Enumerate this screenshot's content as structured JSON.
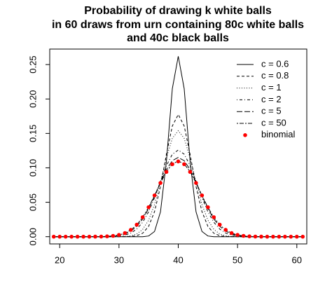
{
  "chart_data": {
    "type": "line",
    "title": [
      "Probability of drawing k white balls",
      "in 60 draws from urn containing 80c white balls",
      "and 40c black balls"
    ],
    "x": [
      19,
      20,
      21,
      22,
      23,
      24,
      25,
      26,
      27,
      28,
      29,
      30,
      31,
      32,
      33,
      34,
      35,
      36,
      37,
      38,
      39,
      40,
      41,
      42,
      43,
      44,
      45,
      46,
      47,
      48,
      49,
      50,
      51,
      52,
      53,
      54,
      55,
      56,
      57,
      58,
      59,
      60,
      61
    ],
    "xlim": [
      18.32,
      61.68
    ],
    "xticks": [
      20,
      30,
      40,
      50,
      60
    ],
    "ylim": [
      -0.0105,
      0.2725
    ],
    "yticks": [
      {
        "value": 0,
        "label": "0.00"
      },
      {
        "value": 0.05,
        "label": "0.05"
      },
      {
        "value": 0.1,
        "label": "0.10"
      },
      {
        "value": 0.15,
        "label": "0.15"
      },
      {
        "value": 0.2,
        "label": "0.20"
      },
      {
        "value": 0.25,
        "label": "0.25"
      }
    ],
    "legend": "top-right",
    "series": [
      {
        "name": "c = 0.6",
        "color": "#000000",
        "linestyle": "solid",
        "values": [
          0,
          0,
          0,
          0,
          0,
          0,
          0,
          0,
          0,
          0,
          0,
          0,
          0,
          0,
          0,
          0,
          0.001,
          0.0076,
          0.036,
          0.109,
          0.215,
          0.262,
          0.215,
          0.109,
          0.036,
          0.0076,
          0.001,
          0,
          0,
          0,
          0,
          0,
          0,
          0,
          0,
          0,
          0,
          0,
          0,
          0,
          0,
          0,
          0
        ]
      },
      {
        "name": "c = 0.8",
        "color": "#000000",
        "linestyle": "dashed",
        "values": [
          0,
          0,
          0,
          0,
          0,
          0,
          0,
          0,
          0,
          0,
          0,
          0,
          0.0001,
          0.0003,
          0.0014,
          0.005,
          0.015,
          0.0364,
          0.0728,
          0.1195,
          0.1608,
          0.1775,
          0.1608,
          0.1195,
          0.0728,
          0.0364,
          0.015,
          0.005,
          0.0014,
          0.0003,
          0.0001,
          0,
          0,
          0,
          0,
          0,
          0,
          0,
          0,
          0,
          0,
          0,
          0
        ]
      },
      {
        "name": "c = 1",
        "color": "#000000",
        "linestyle": "dotted",
        "values": [
          0,
          0,
          0,
          0,
          0,
          0,
          0,
          0,
          0,
          0,
          0,
          0.0001,
          0.0004,
          0.0013,
          0.004,
          0.0106,
          0.024,
          0.0468,
          0.0788,
          0.1143,
          0.1429,
          0.1539,
          0.1429,
          0.1143,
          0.0788,
          0.0468,
          0.024,
          0.0106,
          0.004,
          0.0013,
          0.0004,
          0.0001,
          0,
          0,
          0,
          0,
          0,
          0,
          0,
          0,
          0,
          0,
          0
        ]
      },
      {
        "name": "c = 2",
        "color": "#000000",
        "linestyle": "dotdash",
        "values": [
          0,
          0,
          0,
          0,
          0,
          0,
          0,
          0,
          0,
          0.0001,
          0.0003,
          0.0009,
          0.0022,
          0.0052,
          0.011,
          0.021,
          0.0362,
          0.0568,
          0.0804,
          0.1032,
          0.1198,
          0.1259,
          0.1198,
          0.1032,
          0.0804,
          0.0568,
          0.0362,
          0.021,
          0.011,
          0.0052,
          0.0022,
          0.0009,
          0.0003,
          0.0001,
          0,
          0,
          0,
          0,
          0,
          0,
          0,
          0,
          0
        ]
      },
      {
        "name": "c = 5",
        "color": "#000000",
        "linestyle": "longdash",
        "values": [
          0,
          0,
          0,
          0,
          0,
          0,
          0,
          0,
          0.0001,
          0.0003,
          0.0008,
          0.0018,
          0.004,
          0.008,
          0.015,
          0.0257,
          0.0407,
          0.0592,
          0.0792,
          0.0975,
          0.1104,
          0.1151,
          0.1104,
          0.0975,
          0.0792,
          0.0592,
          0.0407,
          0.0257,
          0.015,
          0.008,
          0.004,
          0.0018,
          0.0008,
          0.0003,
          0.0001,
          0,
          0,
          0,
          0,
          0,
          0,
          0,
          0
        ]
      },
      {
        "name": "c = 50",
        "color": "#000000",
        "linestyle": "twodash",
        "values": [
          0,
          0,
          0,
          0,
          0,
          0,
          0,
          0.0001,
          0.0002,
          0.0005,
          0.0011,
          0.0025,
          0.0051,
          0.0097,
          0.0172,
          0.0281,
          0.0426,
          0.0599,
          0.0781,
          0.0944,
          0.1057,
          0.1098,
          0.1057,
          0.0944,
          0.0781,
          0.0599,
          0.0426,
          0.0281,
          0.0172,
          0.0097,
          0.0051,
          0.0025,
          0.0011,
          0.0005,
          0.0002,
          0.0001,
          0,
          0,
          0,
          0,
          0,
          0,
          0
        ]
      },
      {
        "name": "binomial",
        "color": "#ff0000",
        "linestyle": "points",
        "values": [
          0,
          0,
          0,
          0,
          0,
          0,
          0,
          0.0001,
          0.0002,
          0.0005,
          0.0012,
          0.0026,
          0.0052,
          0.0099,
          0.0174,
          0.0283,
          0.0428,
          0.06,
          0.078,
          0.0941,
          0.1053,
          0.1093,
          0.1053,
          0.0941,
          0.078,
          0.06,
          0.0428,
          0.0283,
          0.0174,
          0.0099,
          0.0052,
          0.0026,
          0.0012,
          0.0005,
          0.0002,
          0.0001,
          0,
          0,
          0,
          0,
          0,
          0,
          0
        ]
      }
    ]
  }
}
